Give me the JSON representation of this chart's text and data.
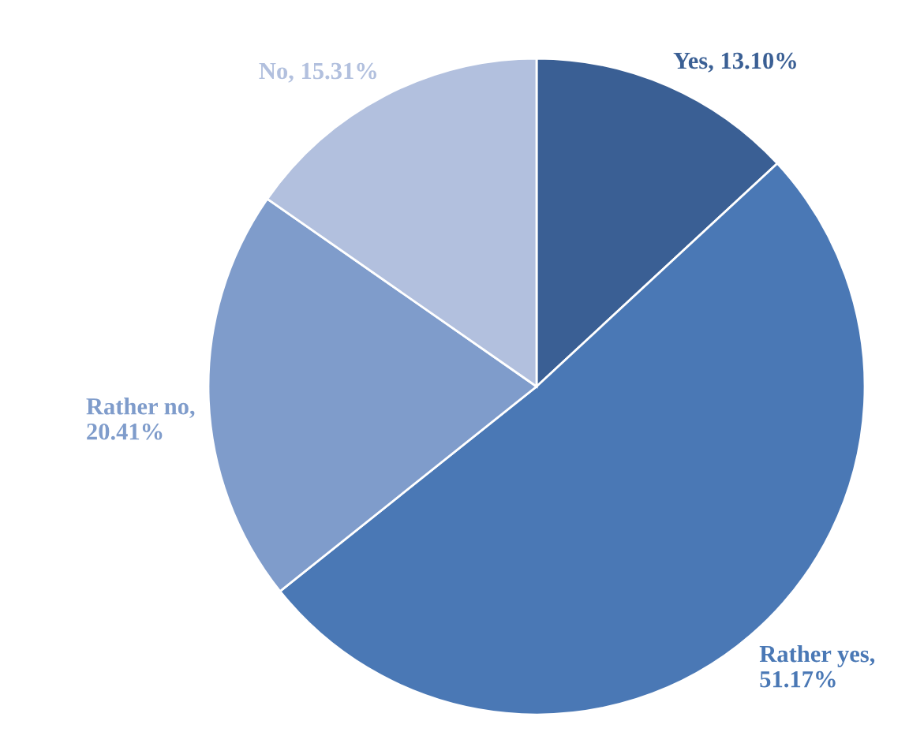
{
  "chart_data": {
    "type": "pie",
    "values": [
      13.1,
      51.17,
      20.41,
      15.31
    ],
    "colors": [
      "#3a5f94",
      "#4a78b5",
      "#7f9ccb",
      "#b2c0de"
    ],
    "value_labels": [
      "Yes, 13.10%",
      "Rather yes,\n51.17%",
      "Rather no,\n20.41%",
      "No, 15.31%"
    ]
  }
}
